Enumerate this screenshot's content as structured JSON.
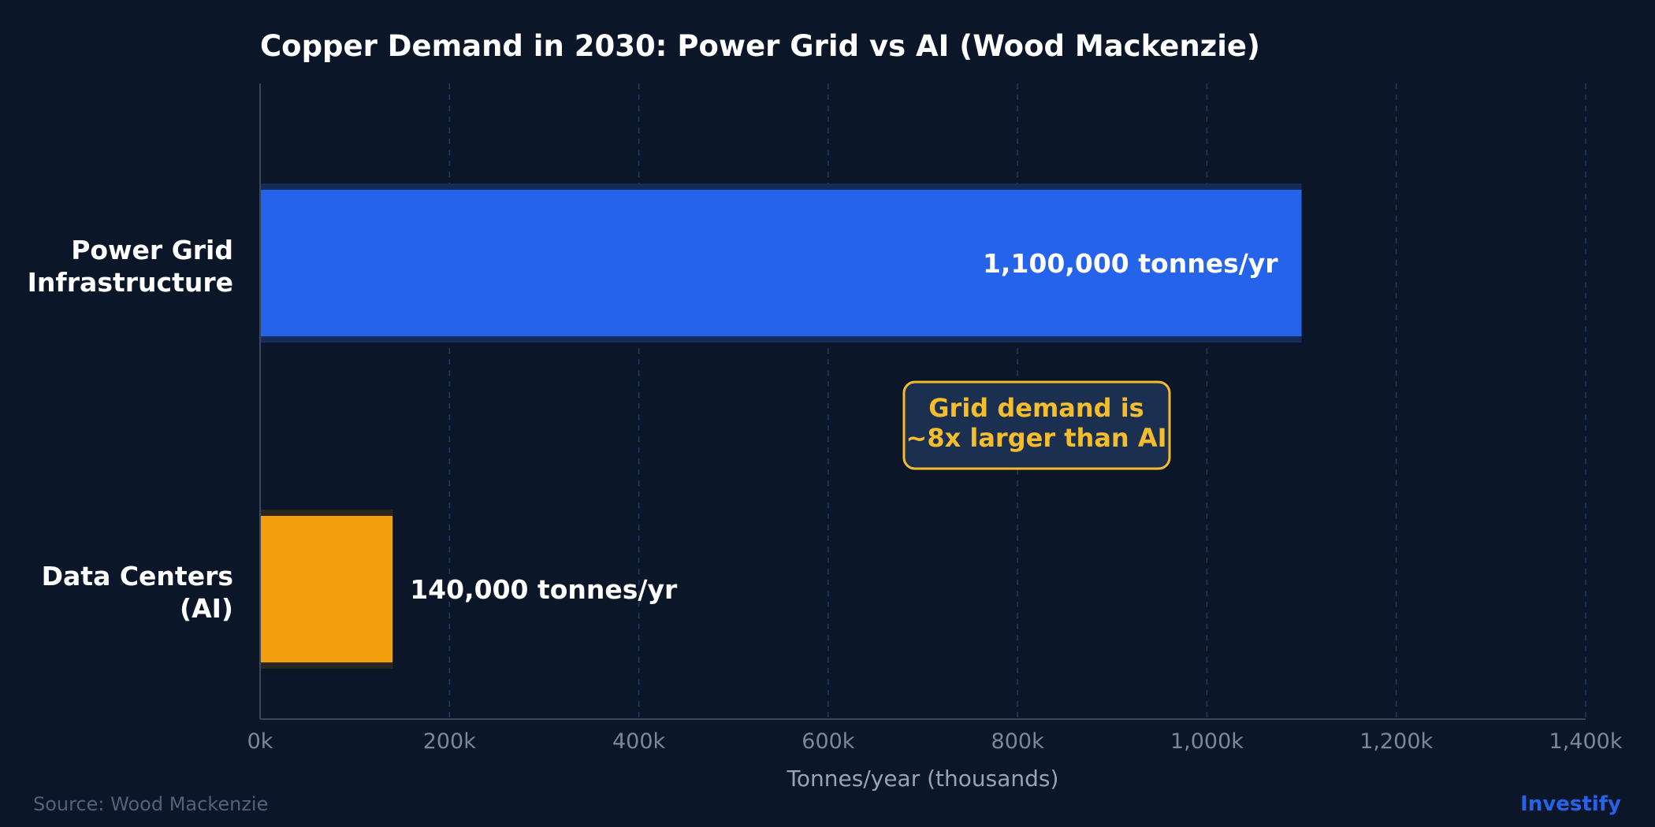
{
  "chart_data": {
    "type": "bar",
    "orientation": "horizontal",
    "title": "Copper Demand in 2030: Power Grid vs AI (Wood Mackenzie)",
    "xlabel": "Tonnes/year (thousands)",
    "ylabel": "",
    "xlim": [
      0,
      1400
    ],
    "xticks": [
      0,
      200,
      400,
      600,
      800,
      1000,
      1200,
      1400
    ],
    "xtick_labels": [
      "0k",
      "200k",
      "400k",
      "600k",
      "800k",
      "1,000k",
      "1,200k",
      "1,400k"
    ],
    "grid": "x-dashed",
    "bars": [
      {
        "category_lines": [
          "Power Grid",
          "Infrastructure"
        ],
        "value": 1100,
        "label": "1,100,000 tonnes/yr",
        "color": "#2563eb"
      },
      {
        "category_lines": [
          "Data Centers",
          "(AI)"
        ],
        "value": 140,
        "label": "140,000 tonnes/yr",
        "color": "#f59e0b"
      }
    ],
    "annotation": {
      "lines": [
        "Grid demand is",
        "~8x larger than AI"
      ],
      "text_color": "#f5bd2c",
      "border_color": "#f5bd2c",
      "fill_color": "#1b3050"
    }
  },
  "footer": {
    "source": "Source: Wood Mackenzie",
    "brand": "Investify"
  },
  "colors": {
    "background": "#0b1628",
    "grid": "#1d3a63",
    "axis": "#3a4558"
  }
}
